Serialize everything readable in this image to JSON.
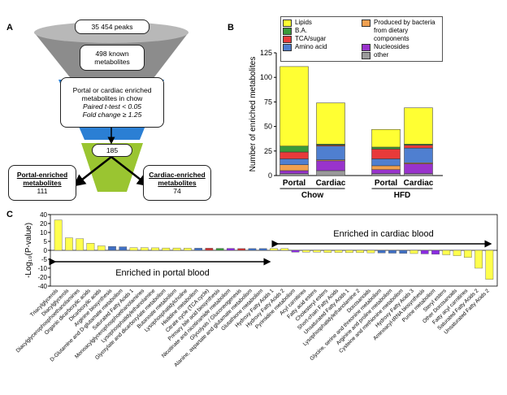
{
  "panel_labels": [
    "A",
    "B",
    "C"
  ],
  "diagram": {
    "nodes": [
      {
        "label": "35 454 peaks"
      },
      {
        "label": "498 known metabolites"
      },
      {
        "label": "Portal or cardiac enriched metabolites in chow",
        "criteria": [
          "Paired t-test < 0.05",
          "Fold change ≥ 1.25"
        ]
      },
      {
        "label": "185"
      },
      {
        "label": "Portal-enriched metabolites",
        "count": "111"
      },
      {
        "label": "Cardiac-enriched metabolites",
        "count": "74"
      }
    ]
  },
  "chart_data": [
    {
      "type": "stacked_bar",
      "ylabel": "Number of enriched metabolites",
      "categories": [
        "Portal",
        "Cardiac",
        "Portal",
        "Cardiac"
      ],
      "groups": [
        "Chow",
        "HFD"
      ],
      "ylim": [
        0,
        125
      ],
      "yticks": [
        0,
        25,
        50,
        75,
        100,
        125
      ],
      "series": [
        {
          "name": "Lipids",
          "color": "#ffff33",
          "values": [
            81,
            42,
            18,
            37
          ]
        },
        {
          "name": "B.A.",
          "color": "#3a9a3a",
          "values": [
            6,
            1,
            2,
            1
          ]
        },
        {
          "name": "TCA/sugar",
          "color": "#e83a3a",
          "values": [
            7,
            1,
            10,
            3
          ]
        },
        {
          "name": "Amino acid",
          "color": "#4f7fd0",
          "values": [
            6,
            14,
            7,
            15
          ]
        },
        {
          "name": "Produced by bacteria from dietary components",
          "color": "#f0a050",
          "values": [
            6,
            1,
            4,
            1
          ]
        },
        {
          "name": "Nucleosides",
          "color": "#9933cc",
          "values": [
            3,
            10,
            4,
            10
          ]
        },
        {
          "name": "other",
          "color": "#9a9a9a",
          "values": [
            2,
            5,
            2,
            2
          ]
        }
      ]
    },
    {
      "type": "bar",
      "ylabel": "-Log₁₀(P-value)",
      "ylim": [
        -40,
        40
      ],
      "yticks": [
        40,
        20,
        10,
        5,
        0,
        -5,
        -10,
        -20,
        -40
      ],
      "annotations": [
        "Enriched in cardiac blood",
        "Enriched in portal blood"
      ],
      "categories": [
        "Triacylglycerols",
        "Diacylglycerols",
        "Diacylglycerophosphoethanolamines",
        "Organic dicarboxylic acids",
        "Dicarboxylic acids",
        "Arginine biosynthesis",
        "D-Glutamine and D-glutamate metabolism",
        "Saturated Fatty Acids 1",
        "Monoacylglycerophosphoethanolamines",
        "Lysophosphatidylethanolamine",
        "Glyoxylate and dicarboxylate metabolism",
        "Butanoate metabolism",
        "Lysophosphatidylcholine",
        "Histidine metabolism",
        "Citrate cycle (TCA cycle)",
        "Primary bile acid biosynthesis",
        "Nicotinate and nicotinamide metabolism",
        "Glycolysis / Gluconeogenesis",
        "Alanine, aspartate and glutamate metabolism",
        "Glutathione metabolism",
        "Hydroxy Fatty Acids 1",
        "Hydroxy Fatty Acids 2",
        "Pyrimidine metabolism",
        "Acyl carnitines",
        "Fatty acid esters",
        "Cholesteryl esters",
        "Short-chain Fatty Acids",
        "Unsaturated Fatty Acids 1",
        "Lysophosphatidylethanolamine 2",
        "Docosanoids",
        "Glycine, serine and threonine metabolism",
        "Arginine and proline metabolism",
        "Cysteine and methionine metabolism",
        "Hydroxy Fatty Acids 3",
        "Aminoacyl-tRNA biosynthesis",
        "Purine metabolism",
        "Steryl esters",
        "Other Docosanoids",
        "Fatty acyl carnitines",
        "Saturated Fatty Acids 2",
        "Unsaturated Fatty Acids 2"
      ],
      "values": [
        28,
        7,
        6.5,
        4,
        2.5,
        2.2,
        2,
        1.5,
        1.5,
        1.4,
        1.3,
        1.3,
        1.2,
        1.2,
        1.2,
        1.1,
        1.1,
        1,
        1,
        1,
        1,
        1,
        -1,
        -1,
        -1,
        -1.2,
        -1.2,
        -1.3,
        -1.3,
        -1.4,
        -1.5,
        -1.6,
        -1.7,
        -1.8,
        -2,
        -2.2,
        -2.5,
        -3,
        -4,
        -10,
        -25
      ],
      "colors": [
        "#ffff4d",
        "#ffff4d",
        "#ffff4d",
        "#ffff4d",
        "#ffff4d",
        "#3f6fc4",
        "#3f6fc4",
        "#ffff4d",
        "#ffff4d",
        "#ffff4d",
        "#ffff4d",
        "#ffff4d",
        "#ffff4d",
        "#3f6fc4",
        "#cc3333",
        "#3a9a3a",
        "#8a2be2",
        "#cc3333",
        "#3f6fc4",
        "#3f6fc4",
        "#ffff4d",
        "#ffff4d",
        "#8a2be2",
        "#ffff4d",
        "#ffff4d",
        "#ffff4d",
        "#ffff4d",
        "#ffff4d",
        "#ffff4d",
        "#ffff4d",
        "#3f6fc4",
        "#3f6fc4",
        "#3f6fc4",
        "#ffff4d",
        "#8a2be2",
        "#8a2be2",
        "#ffff4d",
        "#ffff4d",
        "#ffff4d",
        "#ffff4d",
        "#ffff4d"
      ]
    }
  ]
}
